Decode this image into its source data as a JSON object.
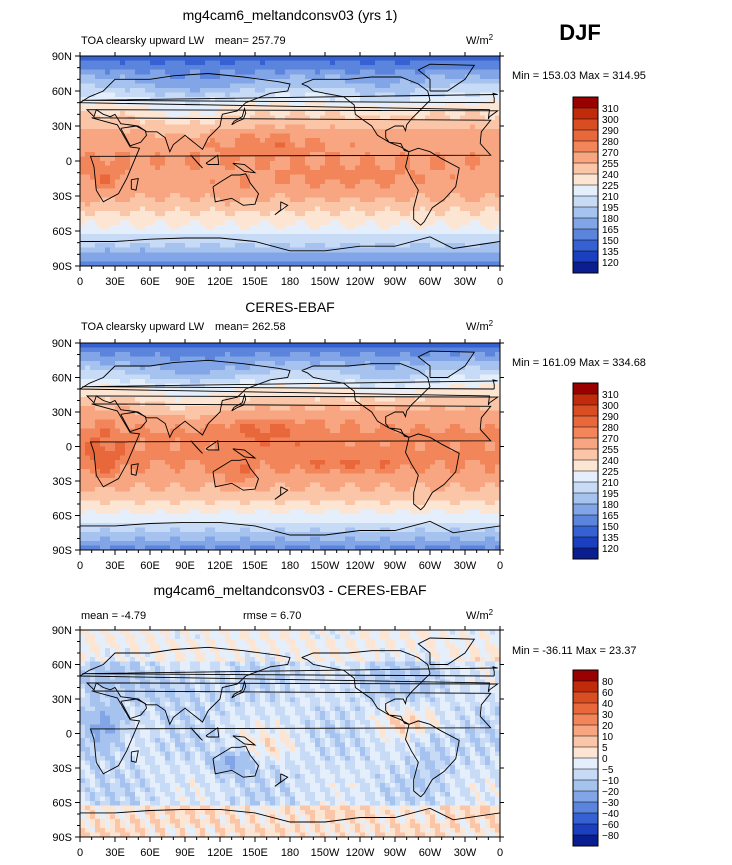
{
  "season": "DJF",
  "units": "W/m",
  "units_sup": "2",
  "chart_data": [
    {
      "type": "heatmap",
      "title": "mg4cam6_meltandconsv03 (yrs 1)",
      "subtitle": "TOA clearsky upward LW",
      "stat_left": "mean=  257.79",
      "stat_mid": "",
      "minmax": "Min = 153.03 Max = 314.95",
      "x_ticks": [
        "0",
        "30E",
        "60E",
        "90E",
        "120E",
        "150E",
        "180",
        "150W",
        "120W",
        "90W",
        "60W",
        "30W",
        "0"
      ],
      "y_ticks": [
        "90N",
        "60N",
        "30N",
        "0",
        "30S",
        "60S",
        "90S"
      ],
      "xlim": [
        0,
        360
      ],
      "ylim": [
        -90,
        90
      ],
      "colorbar_levels": [
        "310",
        "300",
        "290",
        "280",
        "270",
        "255",
        "240",
        "225",
        "210",
        "195",
        "180",
        "165",
        "150",
        "135",
        "120"
      ],
      "colorbar_colors": [
        "#990000",
        "#c02b0b",
        "#d94d22",
        "#e8683b",
        "#f2865a",
        "#f8a681",
        "#fbc5a7",
        "#fde5d4",
        "#e5effb",
        "#c7daf6",
        "#a6c2ef",
        "#81a5e6",
        "#5b84dc",
        "#3561d2",
        "#1c3fc0",
        "#0b1e8f"
      ],
      "field_key": "model"
    },
    {
      "type": "heatmap",
      "title": "CERES-EBAF",
      "subtitle": "TOA clearsky upward LW",
      "stat_left": "mean=  262.58",
      "stat_mid": "",
      "minmax": "Min = 161.09 Max = 334.68",
      "x_ticks": [
        "0",
        "30E",
        "60E",
        "90E",
        "120E",
        "150E",
        "180",
        "150W",
        "120W",
        "90W",
        "60W",
        "30W",
        "0"
      ],
      "y_ticks": [
        "90N",
        "60N",
        "30N",
        "0",
        "30S",
        "60S",
        "90S"
      ],
      "xlim": [
        0,
        360
      ],
      "ylim": [
        -90,
        90
      ],
      "colorbar_levels": [
        "310",
        "300",
        "290",
        "280",
        "270",
        "255",
        "240",
        "225",
        "210",
        "195",
        "180",
        "165",
        "150",
        "135",
        "120"
      ],
      "colorbar_colors": [
        "#990000",
        "#c02b0b",
        "#d94d22",
        "#e8683b",
        "#f2865a",
        "#f8a681",
        "#fbc5a7",
        "#fde5d4",
        "#e5effb",
        "#c7daf6",
        "#a6c2ef",
        "#81a5e6",
        "#5b84dc",
        "#3561d2",
        "#1c3fc0",
        "#0b1e8f"
      ],
      "field_key": "obs"
    },
    {
      "type": "heatmap",
      "title": "mg4cam6_meltandconsv03 - CERES-EBAF",
      "subtitle": "",
      "stat_left": "mean =   -4.79",
      "stat_mid": "rmse =    6.70",
      "minmax": "Min = -36.11 Max =  23.37",
      "x_ticks": [
        "0",
        "30E",
        "60E",
        "90E",
        "120E",
        "150E",
        "180",
        "150W",
        "120W",
        "90W",
        "60W",
        "30W",
        "0"
      ],
      "y_ticks": [
        "90N",
        "60N",
        "30N",
        "0",
        "30S",
        "60S",
        "90S"
      ],
      "xlim": [
        0,
        360
      ],
      "ylim": [
        -90,
        90
      ],
      "colorbar_levels": [
        "80",
        "60",
        "40",
        "30",
        "20",
        "10",
        "5",
        "0",
        "−5",
        "−10",
        "−20",
        "−30",
        "−40",
        "−60",
        "−80"
      ],
      "colorbar_colors": [
        "#990000",
        "#c02b0b",
        "#d94d22",
        "#e8683b",
        "#f2865a",
        "#f8a681",
        "#fbc5a7",
        "#fde5d4",
        "#e5effb",
        "#c7daf6",
        "#a6c2ef",
        "#81a5e6",
        "#5b84dc",
        "#3561d2",
        "#1c3fc0",
        "#0b1e8f"
      ],
      "field_key": "diff"
    }
  ]
}
